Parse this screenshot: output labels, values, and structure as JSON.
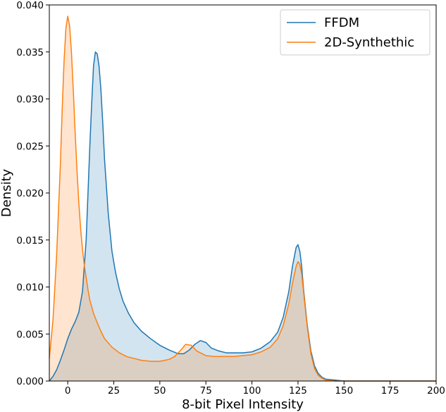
{
  "chart_data": {
    "type": "area",
    "title": "",
    "xlabel": "8-bit Pixel Intensity",
    "ylabel": "Density",
    "xlim": [
      -10,
      200
    ],
    "ylim": [
      0,
      0.04
    ],
    "xticks": [
      0,
      25,
      50,
      75,
      100,
      125,
      150,
      175,
      200
    ],
    "xtick_labels": [
      "0",
      "25",
      "50",
      "75",
      "100",
      "125",
      "150",
      "175",
      "200"
    ],
    "yticks": [
      0,
      0.005,
      0.01,
      0.015,
      0.02,
      0.025,
      0.03,
      0.035,
      0.04
    ],
    "ytick_labels": [
      "0.000",
      "0.005",
      "0.010",
      "0.015",
      "0.020",
      "0.025",
      "0.030",
      "0.035",
      "0.040"
    ],
    "grid": false,
    "legend_position": "top-right",
    "series": [
      {
        "name": "FFDM",
        "color": "#1f77b4",
        "x": [
          -10,
          -8,
          -6,
          -4,
          -2,
          0,
          2,
          4,
          6,
          8,
          10,
          11,
          12,
          13,
          14,
          15,
          16,
          17,
          18,
          19,
          20,
          22,
          24,
          26,
          28,
          30,
          33,
          36,
          40,
          45,
          50,
          55,
          60,
          63,
          66,
          69,
          72,
          75,
          78,
          82,
          86,
          90,
          95,
          100,
          105,
          110,
          114,
          117,
          120,
          122,
          124,
          125,
          126,
          127,
          128,
          130,
          132,
          134,
          136,
          138,
          140,
          145,
          150,
          160,
          170,
          180,
          190,
          200
        ],
        "y": [
          0.0,
          0.0005,
          0.0012,
          0.0022,
          0.0033,
          0.0045,
          0.0055,
          0.0063,
          0.0073,
          0.0095,
          0.015,
          0.02,
          0.025,
          0.0295,
          0.0335,
          0.035,
          0.0348,
          0.0335,
          0.031,
          0.0275,
          0.0235,
          0.0178,
          0.0138,
          0.0115,
          0.0098,
          0.0085,
          0.0072,
          0.0062,
          0.0053,
          0.0045,
          0.0038,
          0.0033,
          0.0029,
          0.0029,
          0.0033,
          0.0039,
          0.0043,
          0.0041,
          0.0035,
          0.0032,
          0.003,
          0.003,
          0.003,
          0.0031,
          0.0035,
          0.0042,
          0.0052,
          0.0068,
          0.0095,
          0.0122,
          0.0142,
          0.0145,
          0.0138,
          0.0122,
          0.0098,
          0.006,
          0.0032,
          0.0016,
          0.0008,
          0.0004,
          0.0002,
          0.0001,
          0.0,
          0.0,
          0.0,
          0.0,
          0.0,
          0.0
        ],
        "fill_color": "#1f77b4",
        "fill_opacity": 0.2
      },
      {
        "name": "2D-Synthethic",
        "color": "#ff7f0e",
        "x": [
          -10,
          -8,
          -6,
          -4,
          -3,
          -2,
          -1,
          0,
          1,
          2,
          3,
          4,
          5,
          6,
          7,
          8,
          9,
          10,
          11,
          12,
          14,
          16,
          18,
          20,
          24,
          28,
          32,
          36,
          40,
          45,
          50,
          55,
          58,
          61,
          64,
          67,
          70,
          75,
          80,
          85,
          90,
          95,
          100,
          105,
          110,
          114,
          117,
          120,
          122,
          124,
          125,
          126,
          127,
          128,
          130,
          132,
          134,
          136,
          138,
          140,
          145,
          150,
          160,
          170,
          180,
          190,
          200
        ],
        "y": [
          0.0024,
          0.0065,
          0.0135,
          0.023,
          0.029,
          0.034,
          0.0375,
          0.0388,
          0.0378,
          0.035,
          0.031,
          0.0265,
          0.0225,
          0.019,
          0.0162,
          0.014,
          0.0123,
          0.011,
          0.0097,
          0.0086,
          0.0072,
          0.0062,
          0.0053,
          0.0045,
          0.0036,
          0.003,
          0.0026,
          0.0024,
          0.0022,
          0.0021,
          0.0021,
          0.0023,
          0.0026,
          0.0032,
          0.0039,
          0.0038,
          0.0032,
          0.0027,
          0.0026,
          0.0026,
          0.0026,
          0.0027,
          0.0028,
          0.0031,
          0.0036,
          0.0045,
          0.0059,
          0.0082,
          0.0104,
          0.0122,
          0.0127,
          0.0124,
          0.0114,
          0.0095,
          0.0058,
          0.0029,
          0.0013,
          0.0006,
          0.0003,
          0.0001,
          0.0,
          0.0,
          0.0,
          0.0,
          0.0,
          0.0,
          0.0
        ],
        "fill_color": "#ff7f0e",
        "fill_opacity": 0.2
      }
    ]
  }
}
